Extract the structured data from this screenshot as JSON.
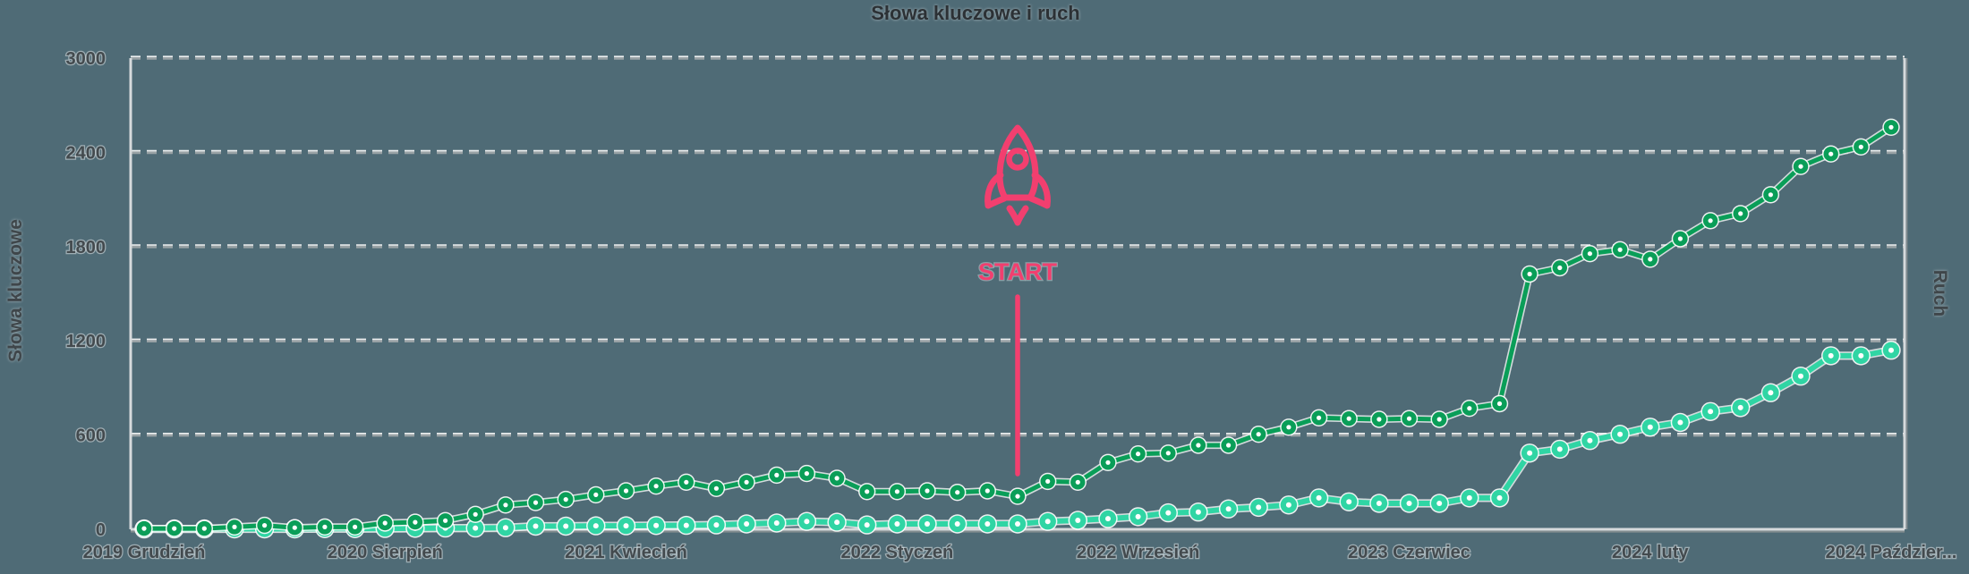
{
  "chart_data": {
    "type": "line",
    "title": "Słowa kluczowe i ruch",
    "ylabel_left": "Słowa kluczowe",
    "ylabel_right": "Ruch",
    "ylim": [
      0,
      3000
    ],
    "y_ticks": [
      0,
      600,
      1200,
      1800,
      2400,
      3000
    ],
    "grid": "horizontal-dashed",
    "legend": "none",
    "x_tick_labels": [
      {
        "label": "2019 Grudzień",
        "month_index": 0
      },
      {
        "label": "2020 Sierpień",
        "month_index": 8
      },
      {
        "label": "2021 Kwiecień",
        "month_index": 16
      },
      {
        "label": "2022 Styczeń",
        "month_index": 25
      },
      {
        "label": "2022 Wrzesień",
        "month_index": 33
      },
      {
        "label": "2023 Czerwiec",
        "month_index": 42
      },
      {
        "label": "2024 luty",
        "month_index": 50
      },
      {
        "label": "2024 Paździer...",
        "month_index": 58
      }
    ],
    "x": [
      "2019-12",
      "2020-01",
      "2020-02",
      "2020-03",
      "2020-04",
      "2020-05",
      "2020-06",
      "2020-07",
      "2020-08",
      "2020-09",
      "2020-10",
      "2020-11",
      "2020-12",
      "2021-01",
      "2021-02",
      "2021-03",
      "2021-04",
      "2021-05",
      "2021-06",
      "2021-07",
      "2021-08",
      "2021-09",
      "2021-10",
      "2021-11",
      "2021-12",
      "2022-01",
      "2022-02",
      "2022-03",
      "2022-04",
      "2022-05",
      "2022-06",
      "2022-07",
      "2022-08",
      "2022-09",
      "2022-10",
      "2022-11",
      "2022-12",
      "2023-01",
      "2023-02",
      "2023-03",
      "2023-04",
      "2023-05",
      "2023-06",
      "2023-07",
      "2023-08",
      "2023-09",
      "2023-10",
      "2023-11",
      "2023-12",
      "2024-01",
      "2024-02",
      "2024-03",
      "2024-04",
      "2024-05",
      "2024-06",
      "2024-07",
      "2024-08",
      "2024-09",
      "2024-10"
    ],
    "series": [
      {
        "name": "Słowa kluczowe",
        "axis": "left",
        "color": "#0A9E58",
        "values": [
          5,
          5,
          5,
          15,
          25,
          10,
          15,
          15,
          40,
          45,
          55,
          95,
          155,
          170,
          190,
          220,
          245,
          275,
          300,
          260,
          300,
          345,
          355,
          325,
          240,
          240,
          245,
          235,
          245,
          210,
          305,
          300,
          425,
          480,
          485,
          535,
          535,
          605,
          650,
          710,
          705,
          700,
          705,
          700,
          770,
          800,
          1625,
          1665,
          1755,
          1780,
          1720,
          1850,
          1965,
          2010,
          2130,
          2310,
          2390,
          2435,
          2560
        ]
      },
      {
        "name": "Ruch",
        "axis": "right",
        "color": "#30D5A4",
        "values": [
          2,
          2,
          2,
          3,
          3,
          3,
          4,
          4,
          5,
          6,
          8,
          8,
          10,
          20,
          20,
          22,
          22,
          24,
          25,
          28,
          34,
          40,
          50,
          45,
          28,
          34,
          34,
          34,
          34,
          34,
          50,
          57,
          68,
          80,
          105,
          110,
          130,
          140,
          155,
          200,
          175,
          165,
          165,
          165,
          200,
          200,
          485,
          510,
          565,
          605,
          650,
          680,
          750,
          775,
          870,
          975,
          1105,
          1105,
          1140
        ]
      }
    ],
    "annotations": [
      {
        "text": "START",
        "icon": "rocket-icon",
        "month": "2022-05",
        "month_index": 29,
        "color": "#F23F6F"
      }
    ],
    "colors": {
      "background": "#4F6B76",
      "keywords_line": "#0A9E58",
      "traffic_line": "#30D5A4",
      "annotation": "#F23F6F",
      "grid_dark": "#99A2A5",
      "grid_light": "#EBEEEF",
      "axis_line": "#D6DADC",
      "axis_shadow": "#828C8F",
      "text": "#434A4E"
    }
  }
}
